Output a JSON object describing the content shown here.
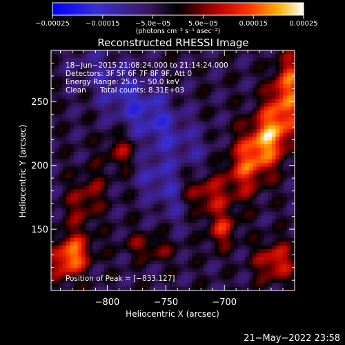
{
  "chart_data": {
    "type": "heatmap",
    "title": "Reconstructed RHESSI Image",
    "xlabel": "Heliocentric X (arcsec)",
    "ylabel": "Heliocentric Y (arcsec)",
    "xlim": [
      -848,
      -640
    ],
    "ylim": [
      102,
      290
    ],
    "x_ticks": [
      -800,
      -750,
      -700
    ],
    "x_tick_labels": [
      "−800",
      "−750",
      "−700"
    ],
    "y_ticks": [
      150,
      200,
      250
    ],
    "y_tick_labels": [
      "150",
      "200",
      "250"
    ],
    "colorbar": {
      "range": [
        -0.00025,
        0.00025
      ],
      "ticks": [
        -0.00025,
        -0.00015,
        -5e-05,
        5e-05,
        0.00015,
        0.00025
      ],
      "tick_labels": [
        "−0.00025",
        "−0.00015",
        "−5.0e−05",
        "5.0e−05",
        "0.00015",
        "0.00025"
      ],
      "unit_label": "(photons cm⁻² s⁻¹ asec⁻²)",
      "colormap": "blue-black-red-yellow-white"
    },
    "annotations": {
      "time_range": "18−Jun−2015 21:08:24.000 to 21:14:24.000",
      "detectors": "Detectors: 3F 5F 6F 7F 8F 9F, Att 0",
      "energy_range": "Energy Range: 25.0 − 50.0 keV",
      "clean_label": "Clean",
      "total_counts": "Total counts: 8.31E+03",
      "peak_position": "Position of Peak = [−833,127]"
    },
    "peak": {
      "x": -833,
      "y": 127
    },
    "bright_regions": [
      {
        "x": -648,
        "y": 235,
        "description": "brightest emission band, upper right"
      },
      {
        "x": -833,
        "y": 127,
        "description": "peak, lower left"
      },
      {
        "x": -800,
        "y": 170,
        "description": "moderate emission, left"
      },
      {
        "x": -745,
        "y": 212,
        "description": "moderate emission, upper center"
      },
      {
        "x": -730,
        "y": 180,
        "description": "moderate emission, center"
      },
      {
        "x": -652,
        "y": 125,
        "description": "emission, lower right"
      },
      {
        "x": -683,
        "y": 155,
        "description": "emission, lower right"
      }
    ],
    "grid": false
  },
  "footer": {
    "date_stamp": "21−May−2022 23:58"
  },
  "colors": {
    "background": "#000000",
    "text": "#ffffff"
  }
}
